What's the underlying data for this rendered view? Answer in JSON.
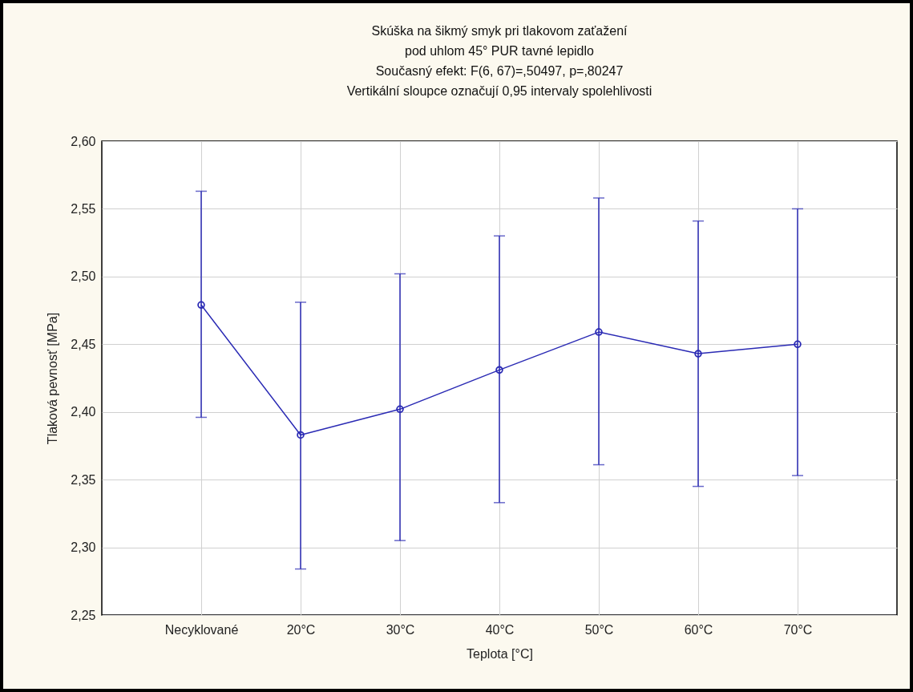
{
  "chart_data": {
    "type": "line",
    "title": "Skúška na šikmý smyk pri tlakovom zaťažení\npod uhlom 45° PUR tavné lepidlo",
    "subtitle": "Současný efekt: F(6, 67)=,50497, p=,80247\nVertikální sloupce označují 0,95 intervaly spolehlivosti",
    "xlabel": "Teplota [°C]",
    "ylabel": "Tlaková pevnosť [MPa]",
    "categories": [
      "Necyklované",
      "20°C",
      "30°C",
      "40°C",
      "50°C",
      "60°C",
      "70°C"
    ],
    "series": [
      {
        "color": "#2a2ab4",
        "values": [
          2.479,
          2.383,
          2.402,
          2.431,
          2.459,
          2.443,
          2.45
        ],
        "errors": [
          [
            2.396,
            2.563
          ],
          [
            2.284,
            2.481
          ],
          [
            2.305,
            2.502
          ],
          [
            2.333,
            2.53
          ],
          [
            2.361,
            2.558
          ],
          [
            2.345,
            2.541
          ],
          [
            2.353,
            2.55
          ]
        ]
      }
    ],
    "ylim": [
      2.25,
      2.6
    ],
    "yticks": [
      {
        "value": 2.25,
        "label": "2,25"
      },
      {
        "value": 2.3,
        "label": "2,30"
      },
      {
        "value": 2.35,
        "label": "2,35"
      },
      {
        "value": 2.4,
        "label": "2,40"
      },
      {
        "value": 2.45,
        "label": "2,45"
      },
      {
        "value": 2.5,
        "label": "2,50"
      },
      {
        "value": 2.55,
        "label": "2,55"
      },
      {
        "value": 2.6,
        "label": "2,60"
      }
    ],
    "grid": true,
    "marker": "circle",
    "line_style": "solid"
  }
}
